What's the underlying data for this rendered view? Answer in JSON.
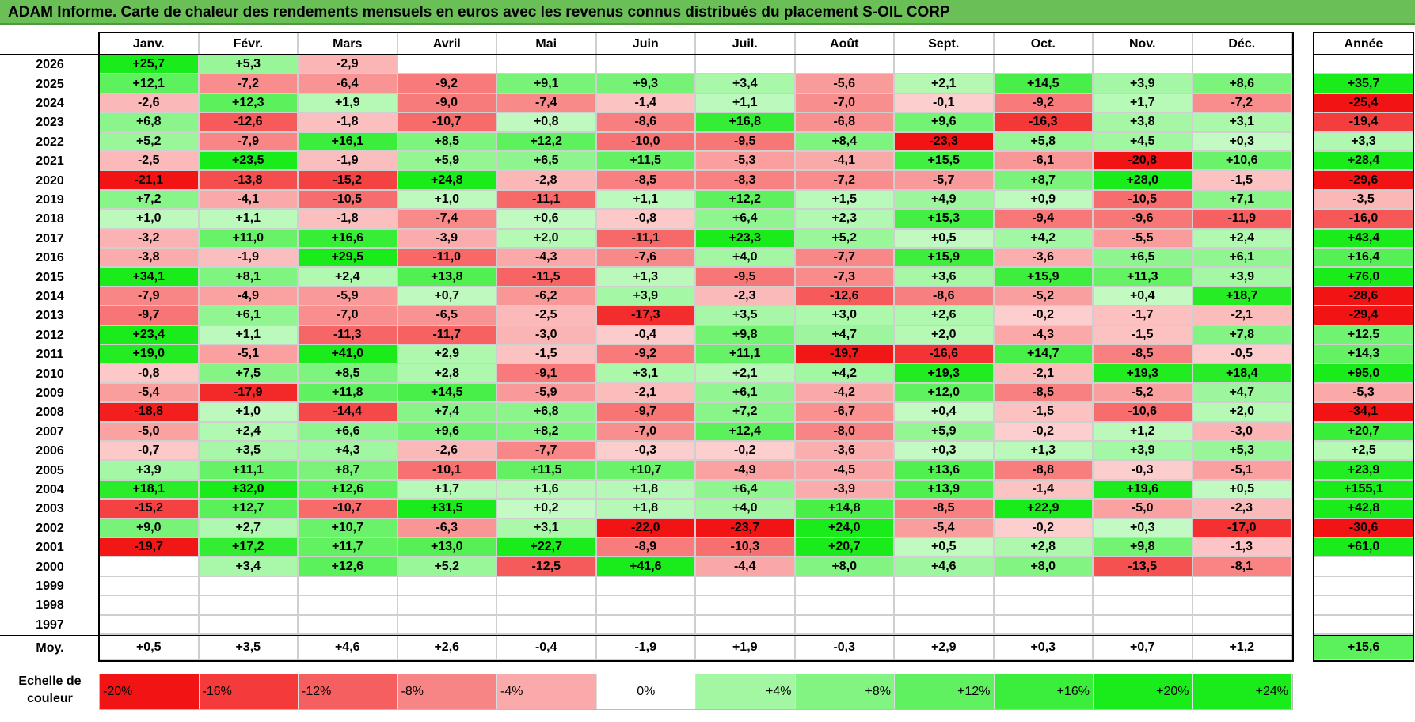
{
  "title": "ADAM Informe. Carte de chaleur des rendements mensuels en euros avec les revenus connus distribués du placement S-OIL CORP",
  "chart_data": {
    "type": "heatmap",
    "title": "ADAM Informe. Carte de chaleur des rendements mensuels en euros avec les revenus connus distribués du placement S-OIL CORP",
    "months": [
      "Janv.",
      "Févr.",
      "Mars",
      "Avril",
      "Mai",
      "Juin",
      "Juil.",
      "Août",
      "Sept.",
      "Oct.",
      "Nov.",
      "Déc."
    ],
    "annual_label": "Année",
    "rows": [
      {
        "year": "2026",
        "values": [
          25.7,
          5.3,
          -2.9,
          null,
          null,
          null,
          null,
          null,
          null,
          null,
          null,
          null
        ],
        "annual": null
      },
      {
        "year": "2025",
        "values": [
          12.1,
          -7.2,
          -6.4,
          -9.2,
          9.1,
          9.3,
          3.4,
          -5.6,
          2.1,
          14.5,
          3.9,
          8.6
        ],
        "annual": 35.7
      },
      {
        "year": "2024",
        "values": [
          -2.6,
          12.3,
          1.9,
          -9.0,
          -7.4,
          -1.4,
          1.1,
          -7.0,
          -0.1,
          -9.2,
          1.7,
          -7.2
        ],
        "annual": -25.4
      },
      {
        "year": "2023",
        "values": [
          6.8,
          -12.6,
          -1.8,
          -10.7,
          0.8,
          -8.6,
          16.8,
          -6.8,
          9.6,
          -16.3,
          3.8,
          3.1
        ],
        "annual": -19.4
      },
      {
        "year": "2022",
        "values": [
          5.2,
          -7.9,
          16.1,
          8.5,
          12.2,
          -10.0,
          -9.5,
          8.4,
          -23.3,
          5.8,
          4.5,
          0.3
        ],
        "annual": 3.3
      },
      {
        "year": "2021",
        "values": [
          -2.5,
          23.5,
          -1.9,
          5.9,
          6.5,
          11.5,
          -5.3,
          -4.1,
          15.5,
          -6.1,
          -20.8,
          10.6
        ],
        "annual": 28.4
      },
      {
        "year": "2020",
        "values": [
          -21.1,
          -13.8,
          -15.2,
          24.8,
          -2.8,
          -8.5,
          -8.3,
          -7.2,
          -5.7,
          8.7,
          28.0,
          -1.5
        ],
        "annual": -29.6
      },
      {
        "year": "2019",
        "values": [
          7.2,
          -4.1,
          -10.5,
          1.0,
          -11.1,
          1.1,
          12.2,
          1.5,
          4.9,
          0.9,
          -10.5,
          7.1
        ],
        "annual": -3.5
      },
      {
        "year": "2018",
        "values": [
          1.0,
          1.1,
          -1.8,
          -7.4,
          0.6,
          -0.8,
          6.4,
          2.3,
          15.3,
          -9.4,
          -9.6,
          -11.9
        ],
        "annual": -16.0
      },
      {
        "year": "2017",
        "values": [
          -3.2,
          11.0,
          16.6,
          -3.9,
          2.0,
          -11.1,
          23.3,
          5.2,
          0.5,
          4.2,
          -5.5,
          2.4
        ],
        "annual": 43.4
      },
      {
        "year": "2016",
        "values": [
          -3.8,
          -1.9,
          29.5,
          -11.0,
          -4.3,
          -7.6,
          4.0,
          -7.7,
          15.9,
          -3.6,
          6.5,
          6.1
        ],
        "annual": 16.4
      },
      {
        "year": "2015",
        "values": [
          34.1,
          8.1,
          2.4,
          13.8,
          -11.5,
          1.3,
          -9.5,
          -7.3,
          3.6,
          15.9,
          11.3,
          3.9
        ],
        "annual": 76.0
      },
      {
        "year": "2014",
        "values": [
          -7.9,
          -4.9,
          -5.9,
          0.7,
          -6.2,
          3.9,
          -2.3,
          -12.6,
          -8.6,
          -5.2,
          0.4,
          18.7
        ],
        "annual": -28.6
      },
      {
        "year": "2013",
        "values": [
          -9.7,
          6.1,
          -7.0,
          -6.5,
          -2.5,
          -17.3,
          3.5,
          3.0,
          2.6,
          -0.2,
          -1.7,
          -2.1
        ],
        "annual": -29.4
      },
      {
        "year": "2012",
        "values": [
          23.4,
          1.1,
          -11.3,
          -11.7,
          -3.0,
          -0.4,
          9.8,
          4.7,
          2.0,
          -4.3,
          -1.5,
          7.8
        ],
        "annual": 12.5
      },
      {
        "year": "2011",
        "values": [
          19.0,
          -5.1,
          41.0,
          2.9,
          -1.5,
          -9.2,
          11.1,
          -19.7,
          -16.6,
          14.7,
          -8.5,
          -0.5
        ],
        "annual": 14.3
      },
      {
        "year": "2010",
        "values": [
          -0.8,
          7.5,
          8.5,
          2.8,
          -9.1,
          3.1,
          2.1,
          4.2,
          19.3,
          -2.1,
          19.3,
          18.4
        ],
        "annual": 95.0
      },
      {
        "year": "2009",
        "values": [
          -5.4,
          -17.9,
          11.8,
          14.5,
          -5.9,
          -2.1,
          6.1,
          -4.2,
          12.0,
          -8.5,
          -5.2,
          4.7
        ],
        "annual": -5.3
      },
      {
        "year": "2008",
        "values": [
          -18.8,
          1.0,
          -14.4,
          7.4,
          6.8,
          -9.7,
          7.2,
          -6.7,
          0.4,
          -1.5,
          -10.6,
          2.0
        ],
        "annual": -34.1
      },
      {
        "year": "2007",
        "values": [
          -5.0,
          2.4,
          6.6,
          9.6,
          8.2,
          -7.0,
          12.4,
          -8.0,
          5.9,
          -0.2,
          1.2,
          -3.0
        ],
        "annual": 20.7
      },
      {
        "year": "2006",
        "values": [
          -0.7,
          3.5,
          4.3,
          -2.6,
          -7.7,
          -0.3,
          -0.2,
          -3.6,
          0.3,
          1.3,
          3.9,
          5.3
        ],
        "annual": 2.5
      },
      {
        "year": "2005",
        "values": [
          3.9,
          11.1,
          8.7,
          -10.1,
          11.5,
          10.7,
          -4.9,
          -4.5,
          13.6,
          -8.8,
          -0.3,
          -5.1
        ],
        "annual": 23.9
      },
      {
        "year": "2004",
        "values": [
          18.1,
          32.0,
          12.6,
          1.7,
          1.6,
          1.8,
          6.4,
          -3.9,
          13.9,
          -1.4,
          19.6,
          0.5
        ],
        "annual": 155.1
      },
      {
        "year": "2003",
        "values": [
          -15.2,
          12.7,
          -10.7,
          31.5,
          0.2,
          1.8,
          4.0,
          14.8,
          -8.5,
          22.9,
          -5.0,
          -2.3
        ],
        "annual": 42.8
      },
      {
        "year": "2002",
        "values": [
          9.0,
          2.7,
          10.7,
          -6.3,
          3.1,
          -22.0,
          -23.7,
          24.0,
          -5.4,
          -0.2,
          0.3,
          -17.0
        ],
        "annual": -30.6
      },
      {
        "year": "2001",
        "values": [
          -19.7,
          17.2,
          11.7,
          13.0,
          22.7,
          -8.9,
          -10.3,
          20.7,
          0.5,
          2.8,
          9.8,
          -1.3
        ],
        "annual": 61.0
      },
      {
        "year": "2000",
        "values": [
          null,
          3.4,
          12.6,
          5.2,
          -12.5,
          41.6,
          -4.4,
          8.0,
          4.6,
          8.0,
          -13.5,
          -8.1
        ],
        "annual": null
      },
      {
        "year": "1999",
        "values": [
          null,
          null,
          null,
          null,
          null,
          null,
          null,
          null,
          null,
          null,
          null,
          null
        ],
        "annual": null
      },
      {
        "year": "1998",
        "values": [
          null,
          null,
          null,
          null,
          null,
          null,
          null,
          null,
          null,
          null,
          null,
          null
        ],
        "annual": null
      },
      {
        "year": "1997",
        "values": [
          null,
          null,
          null,
          null,
          null,
          null,
          null,
          null,
          null,
          null,
          null,
          null
        ],
        "annual": null
      }
    ],
    "average": {
      "label": "Moy.",
      "values": [
        0.5,
        3.5,
        4.6,
        2.6,
        -0.4,
        -1.9,
        1.9,
        -0.3,
        2.9,
        0.3,
        0.7,
        1.2
      ],
      "annual": 15.6
    },
    "color_scale": {
      "label": "Echelle de couleur",
      "stops": [
        "-20%",
        "-16%",
        "-12%",
        "-8%",
        "-4%",
        "0%",
        "+4%",
        "+8%",
        "+12%",
        "+16%",
        "+20%",
        "+24%"
      ],
      "stop_values": [
        -20,
        -16,
        -12,
        -8,
        -4,
        0,
        4,
        8,
        12,
        16,
        20,
        24
      ],
      "negative_color": "#ff0000",
      "positive_color": "#00ff00",
      "neutral_color": "#ffffff"
    }
  }
}
